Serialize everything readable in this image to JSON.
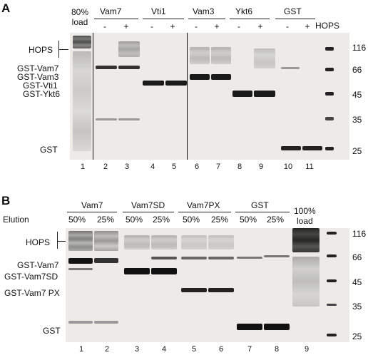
{
  "panel_a": {
    "letter": "A",
    "load_label_1": "80%",
    "load_label_2": "load",
    "groups": [
      "Vam7",
      "Vti1",
      "Vam3",
      "Ykt6",
      "GST"
    ],
    "minus": "-",
    "plus": "+",
    "hops_column": "HOPS",
    "left_labels": [
      "HOPS",
      "GST-Vam7",
      "GST-Vam3",
      "GST-Vti1",
      "GST-Ykt6",
      "GST"
    ],
    "markers": [
      "116",
      "66",
      "45",
      "35",
      "25"
    ],
    "lanes": [
      "1",
      "2",
      "3",
      "4",
      "5",
      "6",
      "7",
      "8",
      "9",
      "10",
      "11"
    ]
  },
  "panel_b": {
    "letter": "B",
    "groups": [
      "Vam7",
      "Vam7SD",
      "Vam7PX",
      "GST"
    ],
    "elution_label": "Elution",
    "percents": [
      "50%",
      "25%",
      "50%",
      "25%",
      "50%",
      "25%",
      "50%",
      "25%"
    ],
    "load_label_1": "100%",
    "load_label_2": "load",
    "left_labels": [
      "HOPS",
      "GST-Vam7",
      "GST-Vam7SD",
      "GST-Vam7 PX",
      "GST"
    ],
    "markers": [
      "116",
      "66",
      "45",
      "35",
      "25"
    ],
    "lanes": [
      "1",
      "2",
      "3",
      "4",
      "5",
      "6",
      "7",
      "8",
      "9"
    ]
  }
}
